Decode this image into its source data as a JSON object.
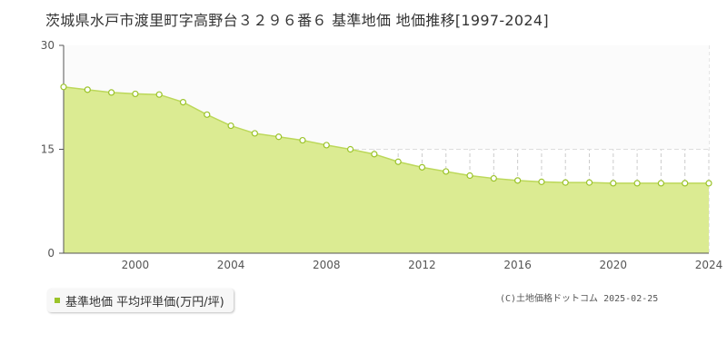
{
  "page": {
    "title": "茨城県水戸市渡里町字高野台３２９６番６ 基準地価 地価推移[1997-2024]",
    "copyright": "(C)土地価格ドットコム 2025-02-25"
  },
  "legend": {
    "label": "基準地価 平均坪単価(万円/坪)"
  },
  "colors": {
    "fill": "#dbeb92",
    "line": "#bcd85a",
    "point": "#9bc32a",
    "swatch": "#9bc32a",
    "grid": "#cccccc",
    "refline": "#dddddd",
    "axis": "#555555"
  },
  "chart_data": {
    "type": "area",
    "title": "茨城県水戸市渡里町字高野台３２９６番６ 基準地価 地価推移[1997-2024]",
    "xlabel": "",
    "ylabel": "",
    "x": [
      1997,
      1998,
      1999,
      2000,
      2001,
      2002,
      2003,
      2004,
      2005,
      2006,
      2007,
      2008,
      2009,
      2010,
      2011,
      2012,
      2013,
      2014,
      2015,
      2016,
      2017,
      2018,
      2019,
      2020,
      2021,
      2022,
      2023,
      2024
    ],
    "series": [
      {
        "name": "基準地価 平均坪単価(万円/坪)",
        "values": [
          24.0,
          23.6,
          23.2,
          23.0,
          22.9,
          21.8,
          20.0,
          18.4,
          17.3,
          16.8,
          16.3,
          15.6,
          15.0,
          14.3,
          13.2,
          12.4,
          11.8,
          11.2,
          10.8,
          10.5,
          10.3,
          10.2,
          10.2,
          10.1,
          10.1,
          10.1,
          10.1,
          10.1
        ]
      }
    ],
    "xlim": [
      1997,
      2024
    ],
    "ylim": [
      0,
      30
    ],
    "yticks": [
      0,
      15,
      30
    ],
    "xticks": [
      2000,
      2004,
      2008,
      2012,
      2016,
      2020,
      2024
    ],
    "grid": "vertical dashed per year; horizontal dashed at 15",
    "legend_position": "bottom-left"
  }
}
